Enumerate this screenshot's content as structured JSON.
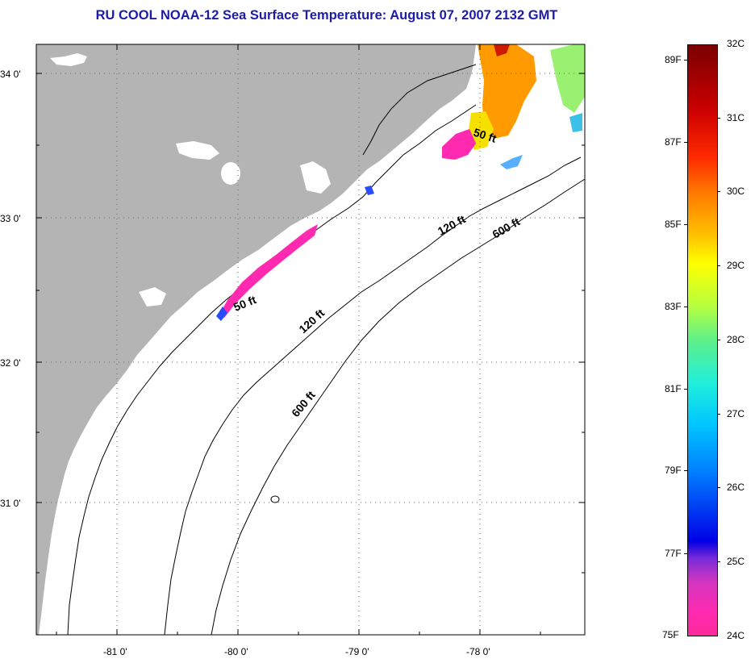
{
  "title": "RU COOL  NOAA-12  Sea Surface Temperature:  August 07, 2007 2132 GMT",
  "lat_labels": [
    "34 0'",
    "33 0'",
    "32 0'",
    "31 0'"
  ],
  "lon_labels": [
    "-81 0'",
    "-80 0'",
    "-79 0'",
    "-78 0'"
  ],
  "contour_labels": {
    "c50_north": "50 ft",
    "c50_south": "50 ft",
    "c120_north": "120 ft",
    "c120_south": "120 ft",
    "c600_north": "600 ft",
    "c600_south": "600 ft"
  },
  "colorbar": {
    "celsius": [
      "32C",
      "31C",
      "30C",
      "29C",
      "28C",
      "27C",
      "26C",
      "25C",
      "24C"
    ],
    "fahrenheit": [
      "89F",
      "87F",
      "85F",
      "83F",
      "81F",
      "79F",
      "77F",
      "75F"
    ]
  },
  "colors": {
    "land": "#b4b4b4",
    "ocean": "#ffffff",
    "title": "#1c1ca8",
    "low_temp": "#ff2ab0",
    "high_temp": "#7a0000"
  }
}
